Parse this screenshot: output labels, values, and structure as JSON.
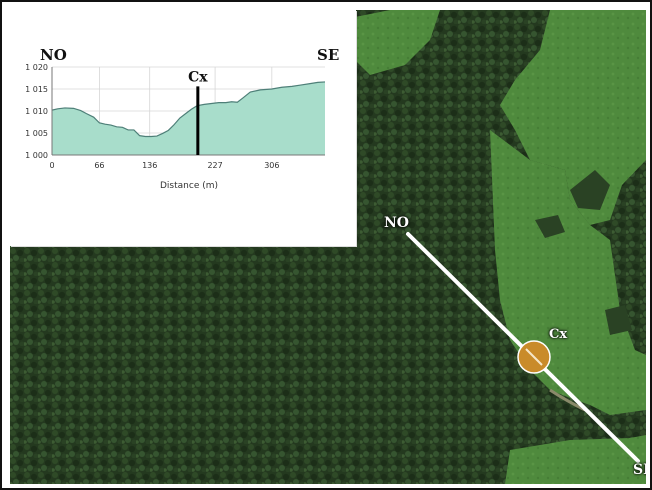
{
  "map": {
    "line_start_label": "NO",
    "line_end_label": "SE",
    "point_label": "Cx",
    "point_color": "#C98B2A",
    "line_color": "#FFFFFF"
  },
  "profile": {
    "left_label": "NO",
    "right_label": "SE",
    "marker_label": "Cx",
    "xlabel": "Distance (m)",
    "fill_color": "#A8DDCB",
    "line_color": "#4E7F78"
  },
  "chart_data": {
    "type": "area",
    "title": "",
    "xlabel": "Distance (m)",
    "ylabel": "",
    "xlim": [
      0,
      380
    ],
    "ylim": [
      1000,
      1020
    ],
    "x_ticks": [
      0,
      66,
      136,
      227,
      306
    ],
    "x_tick_labels": [
      "0",
      "66",
      "136",
      "227",
      "306"
    ],
    "y_ticks": [
      1000,
      1005,
      1010,
      1015,
      1020
    ],
    "y_tick_labels": [
      "1 000",
      "1 005",
      "1 010",
      "1 015",
      "1 020"
    ],
    "grid": true,
    "marker_x": 203,
    "marker_label": "Cx",
    "x": [
      0,
      8,
      18,
      30,
      40,
      48,
      58,
      66,
      74,
      82,
      90,
      98,
      106,
      114,
      122,
      130,
      138,
      146,
      154,
      162,
      170,
      178,
      186,
      194,
      202,
      212,
      222,
      232,
      242,
      250,
      258,
      266,
      276,
      290,
      306,
      320,
      334,
      346,
      358,
      370,
      380
    ],
    "y": [
      1010.2,
      1010.5,
      1010.7,
      1010.6,
      1010.1,
      1009.4,
      1008.6,
      1007.3,
      1007.0,
      1006.8,
      1006.4,
      1006.3,
      1005.7,
      1005.7,
      1004.4,
      1004.2,
      1004.2,
      1004.3,
      1004.9,
      1005.6,
      1006.9,
      1008.4,
      1009.4,
      1010.4,
      1011.2,
      1011.5,
      1011.7,
      1011.9,
      1011.9,
      1012.1,
      1012.0,
      1013.0,
      1014.3,
      1014.8,
      1015.0,
      1015.4,
      1015.6,
      1015.9,
      1016.2,
      1016.5,
      1016.6
    ]
  }
}
